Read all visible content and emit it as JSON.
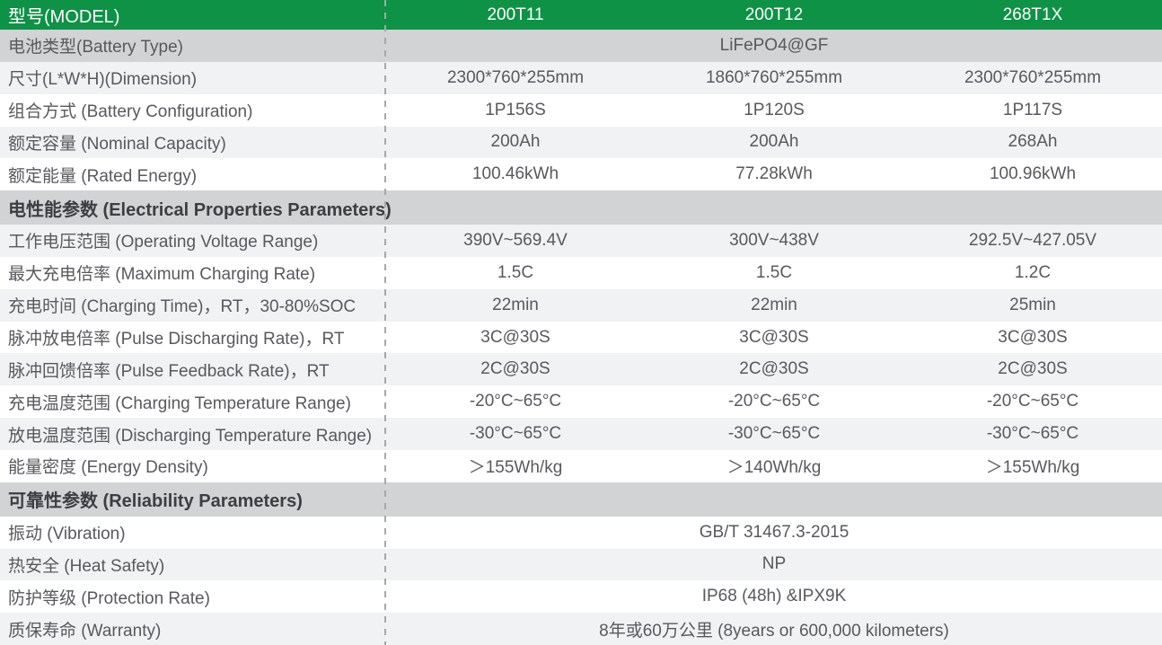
{
  "accent_color": "#0e9246",
  "divider_color": "#a6a8ab",
  "table": {
    "header": {
      "label": "型号(MODEL)",
      "models": [
        "200T11",
        "200T12",
        "268T1X"
      ]
    },
    "rows": [
      {
        "label": "电池类型(Battery Type)",
        "span": "LiFePO4@GF"
      },
      {
        "label": "尺寸(L*W*H)(Dimension)",
        "values": [
          "2300*760*255mm",
          "1860*760*255mm",
          "2300*760*255mm"
        ]
      },
      {
        "label": "组合方式 (Battery Configuration)",
        "values": [
          "1P156S",
          "1P120S",
          "1P117S"
        ]
      },
      {
        "label": "额定容量 (Nominal Capacity)",
        "values": [
          "200Ah",
          "200Ah",
          "268Ah"
        ]
      },
      {
        "label": "额定能量 (Rated Energy)",
        "values": [
          "100.46kWh",
          "77.28kWh",
          "100.96kWh"
        ]
      },
      {
        "label": "电性能参数 (Electrical Properties Parameters)"
      },
      {
        "label": "工作电压范围 (Operating Voltage Range)",
        "values": [
          "390V~569.4V",
          "300V~438V",
          "292.5V~427.05V"
        ]
      },
      {
        "label": "最大充电倍率 (Maximum Charging Rate)",
        "values": [
          "1.5C",
          "1.5C",
          "1.2C"
        ]
      },
      {
        "label": "充电时间 (Charging Time)，RT，30-80%SOC",
        "values": [
          "22min",
          "22min",
          "25min"
        ]
      },
      {
        "label": "脉冲放电倍率 (Pulse Discharging Rate)，RT",
        "values": [
          "3C@30S",
          "3C@30S",
          "3C@30S"
        ]
      },
      {
        "label": "脉冲回馈倍率 (Pulse Feedback Rate)，RT",
        "values": [
          "2C@30S",
          "2C@30S",
          "2C@30S"
        ]
      },
      {
        "label": "充电温度范围 (Charging Temperature Range)",
        "values": [
          "-20°C~65°C",
          "-20°C~65°C",
          "-20°C~65°C"
        ]
      },
      {
        "label": "放电温度范围 (Discharging Temperature Range)",
        "values": [
          "-30°C~65°C",
          "-30°C~65°C",
          "-30°C~65°C"
        ]
      },
      {
        "label": "能量密度 (Energy Density)",
        "values": [
          "＞155Wh/kg",
          "＞140Wh/kg",
          "＞155Wh/kg"
        ]
      },
      {
        "label": "可靠性参数 (Reliability Parameters)"
      },
      {
        "label": "振动 (Vibration)",
        "span": "GB/T 31467.3-2015"
      },
      {
        "label": "热安全 (Heat Safety)",
        "span": "NP"
      },
      {
        "label": "防护等级 (Protection Rate)",
        "span": "IP68 (48h) &IPX9K"
      },
      {
        "label": "质保寿命 (Warranty)",
        "span": "8年或60万公里 (8years or 600,000 kilometers)"
      }
    ]
  }
}
